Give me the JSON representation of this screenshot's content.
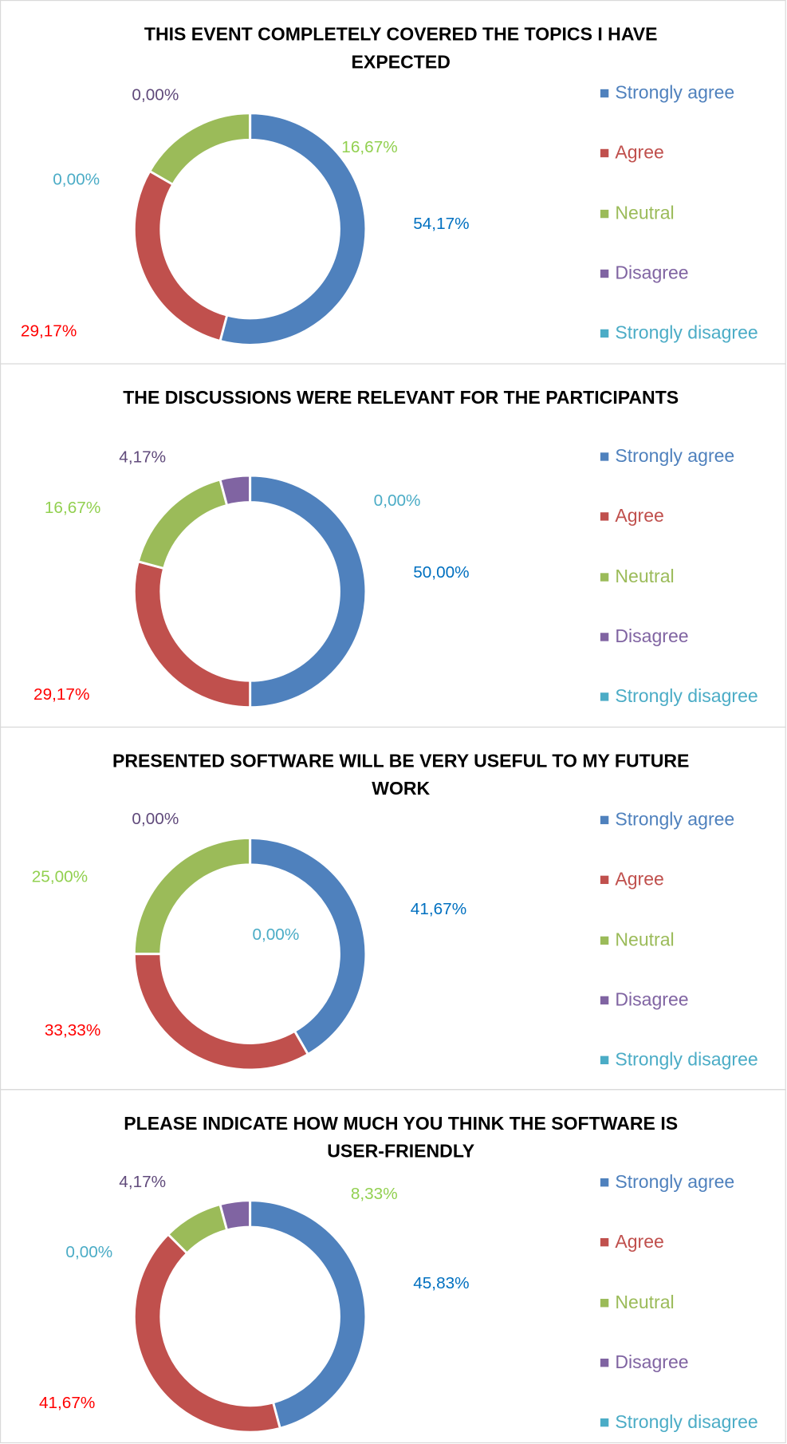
{
  "chart_data": [
    {
      "type": "donut",
      "title": "THIS EVENT COMPLETELY COVERED THE TOPICS I HAVE EXPECTED",
      "categories": [
        "Strongly agree",
        "Agree",
        "Neutral",
        "Disagree",
        "Strongly disagree"
      ],
      "values": [
        54.17,
        29.17,
        16.67,
        0,
        0
      ],
      "value_labels": [
        "54,17%",
        "29,17%",
        "16,67%",
        "0,00%",
        "0,00%"
      ],
      "colors": [
        "#4f81bd",
        "#c0504d",
        "#9bbb59",
        "#8064a2",
        "#4bacc6"
      ],
      "label_colors": [
        "#0070c0",
        "#ff0000",
        "#92d050",
        "#604a7b",
        "#4bacc6"
      ]
    },
    {
      "type": "donut",
      "title": "THE DISCUSSIONS WERE RELEVANT FOR THE PARTICIPANTS",
      "categories": [
        "Strongly agree",
        "Agree",
        "Neutral",
        "Disagree",
        "Strongly disagree"
      ],
      "values": [
        50.0,
        29.17,
        16.67,
        4.17,
        0
      ],
      "value_labels": [
        "50,00%",
        "29,17%",
        "16,67%",
        "4,17%",
        "0,00%"
      ],
      "colors": [
        "#4f81bd",
        "#c0504d",
        "#9bbb59",
        "#8064a2",
        "#4bacc6"
      ],
      "label_colors": [
        "#0070c0",
        "#ff0000",
        "#92d050",
        "#604a7b",
        "#4bacc6"
      ]
    },
    {
      "type": "donut",
      "title": "PRESENTED SOFTWARE WILL BE VERY USEFUL TO MY FUTURE WORK",
      "categories": [
        "Strongly agree",
        "Agree",
        "Neutral",
        "Disagree",
        "Strongly disagree"
      ],
      "values": [
        41.67,
        33.33,
        25.0,
        0,
        0
      ],
      "value_labels": [
        "41,67%",
        "33,33%",
        "25,00%",
        "0,00%",
        "0,00%"
      ],
      "colors": [
        "#4f81bd",
        "#c0504d",
        "#9bbb59",
        "#8064a2",
        "#4bacc6"
      ],
      "label_colors": [
        "#0070c0",
        "#ff0000",
        "#92d050",
        "#604a7b",
        "#4bacc6"
      ]
    },
    {
      "type": "donut",
      "title": "PLEASE INDICATE HOW MUCH YOU THINK THE SOFTWARE IS USER-FRIENDLY",
      "categories": [
        "Strongly agree",
        "Agree",
        "Neutral",
        "Disagree",
        "Strongly disagree"
      ],
      "values": [
        45.83,
        41.67,
        8.33,
        4.17,
        0
      ],
      "value_labels": [
        "45,83%",
        "41,67%",
        "8,33%",
        "4,17%",
        "0,00%"
      ],
      "colors": [
        "#4f81bd",
        "#c0504d",
        "#9bbb59",
        "#8064a2",
        "#4bacc6"
      ],
      "label_colors": [
        "#0070c0",
        "#ff0000",
        "#92d050",
        "#604a7b",
        "#4bacc6"
      ]
    }
  ]
}
